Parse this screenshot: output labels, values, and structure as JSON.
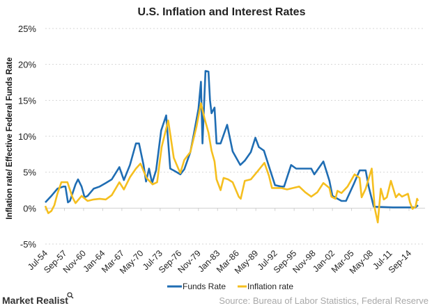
{
  "chart_data": {
    "type": "line",
    "title": "U.S. Inflation and Interest Rates",
    "ylabel": "Inflation rate/ Effective Federal Funds Rate",
    "xlabel": "",
    "ylim": [
      -5,
      25
    ],
    "yticks": [
      "25%",
      "20%",
      "15%",
      "10%",
      "5%",
      "0%",
      "-5%"
    ],
    "ytick_values": [
      25,
      20,
      15,
      10,
      5,
      0,
      -5
    ],
    "xlim": [
      "1954-07",
      "2016-03"
    ],
    "xticks": [
      "Jul-54",
      "Sep-57",
      "Nov-60",
      "Jan-64",
      "Mar-67",
      "May-70",
      "Jul-73",
      "Sep-76",
      "Nov-79",
      "Jan-83",
      "Mar-86",
      "May-89",
      "Jul-92",
      "Sep-95",
      "Nov-98",
      "Jan-02",
      "Mar-05",
      "May-08",
      "Jul-11",
      "Sep-14"
    ],
    "xtick_dates": [
      "1954-07",
      "1957-09",
      "1960-11",
      "1964-01",
      "1967-03",
      "1970-05",
      "1973-07",
      "1976-09",
      "1979-11",
      "1983-01",
      "1986-03",
      "1989-05",
      "1992-07",
      "1995-09",
      "1998-11",
      "2002-01",
      "2005-03",
      "2008-05",
      "2011-07",
      "2014-09"
    ],
    "grid": true,
    "legend_position": "bottom",
    "series": [
      {
        "name": "Funds Rate",
        "color": "#1f6db3",
        "points": [
          [
            "1954-07",
            0.8
          ],
          [
            "1955-07",
            1.7
          ],
          [
            "1956-07",
            2.7
          ],
          [
            "1957-07",
            3.0
          ],
          [
            "1957-11",
            3.0
          ],
          [
            "1958-04",
            0.8
          ],
          [
            "1958-08",
            1.0
          ],
          [
            "1959-07",
            3.3
          ],
          [
            "1959-12",
            4.0
          ],
          [
            "1960-07",
            3.0
          ],
          [
            "1961-01",
            1.5
          ],
          [
            "1961-07",
            1.7
          ],
          [
            "1962-07",
            2.7
          ],
          [
            "1963-07",
            3.0
          ],
          [
            "1964-07",
            3.5
          ],
          [
            "1965-07",
            4.0
          ],
          [
            "1966-10",
            5.7
          ],
          [
            "1967-07",
            3.9
          ],
          [
            "1968-07",
            6.0
          ],
          [
            "1969-07",
            9.0
          ],
          [
            "1970-01",
            9.0
          ],
          [
            "1970-10",
            6.0
          ],
          [
            "1971-03",
            3.7
          ],
          [
            "1971-09",
            5.5
          ],
          [
            "1972-03",
            3.5
          ],
          [
            "1972-11",
            5.3
          ],
          [
            "1973-09",
            10.8
          ],
          [
            "1974-07",
            12.9
          ],
          [
            "1975-03",
            5.5
          ],
          [
            "1975-11",
            5.2
          ],
          [
            "1976-11",
            4.7
          ],
          [
            "1977-07",
            5.4
          ],
          [
            "1978-07",
            7.8
          ],
          [
            "1979-01",
            10.0
          ],
          [
            "1979-11",
            13.8
          ],
          [
            "1980-04",
            17.6
          ],
          [
            "1980-07",
            9.0
          ],
          [
            "1981-01",
            19.1
          ],
          [
            "1981-07",
            19.0
          ],
          [
            "1981-10",
            15.0
          ],
          [
            "1982-01",
            13.2
          ],
          [
            "1982-07",
            14.0
          ],
          [
            "1982-11",
            9.0
          ],
          [
            "1983-07",
            9.0
          ],
          [
            "1984-08",
            11.6
          ],
          [
            "1985-07",
            7.9
          ],
          [
            "1986-10",
            6.0
          ],
          [
            "1987-07",
            6.6
          ],
          [
            "1988-07",
            7.8
          ],
          [
            "1989-04",
            9.8
          ],
          [
            "1989-11",
            8.5
          ],
          [
            "1990-09",
            8.0
          ],
          [
            "1991-07",
            5.8
          ],
          [
            "1992-07",
            3.2
          ],
          [
            "1993-07",
            3.0
          ],
          [
            "1994-01",
            3.0
          ],
          [
            "1995-03",
            6.0
          ],
          [
            "1996-01",
            5.5
          ],
          [
            "1997-07",
            5.5
          ],
          [
            "1998-07",
            5.5
          ],
          [
            "1999-01",
            4.7
          ],
          [
            "2000-07",
            6.5
          ],
          [
            "2001-07",
            3.8
          ],
          [
            "2002-01",
            1.7
          ],
          [
            "2003-07",
            1.0
          ],
          [
            "2004-04",
            1.0
          ],
          [
            "2005-07",
            3.3
          ],
          [
            "2006-07",
            5.25
          ],
          [
            "2007-07",
            5.25
          ],
          [
            "2008-01",
            3.0
          ],
          [
            "2008-11",
            0.2
          ],
          [
            "2012-01",
            0.1
          ],
          [
            "2015-10",
            0.1
          ],
          [
            "2016-03",
            0.4
          ]
        ]
      },
      {
        "name": "Inflation rate",
        "color": "#f5bf1f",
        "points": [
          [
            "1954-07",
            0.3
          ],
          [
            "1955-01",
            -0.7
          ],
          [
            "1955-07",
            -0.4
          ],
          [
            "1956-01",
            0.4
          ],
          [
            "1956-07",
            2.0
          ],
          [
            "1957-03",
            3.6
          ],
          [
            "1958-03",
            3.6
          ],
          [
            "1959-01",
            1.5
          ],
          [
            "1959-07",
            0.7
          ],
          [
            "1960-07",
            1.7
          ],
          [
            "1961-07",
            1.0
          ],
          [
            "1962-07",
            1.2
          ],
          [
            "1963-07",
            1.3
          ],
          [
            "1964-07",
            1.2
          ],
          [
            "1965-07",
            1.8
          ],
          [
            "1966-10",
            3.6
          ],
          [
            "1967-07",
            2.6
          ],
          [
            "1968-07",
            4.3
          ],
          [
            "1969-07",
            5.5
          ],
          [
            "1970-04",
            6.2
          ],
          [
            "1971-04",
            4.2
          ],
          [
            "1972-04",
            3.3
          ],
          [
            "1973-01",
            3.6
          ],
          [
            "1973-10",
            8.5
          ],
          [
            "1974-11",
            12.2
          ],
          [
            "1975-10",
            7.0
          ],
          [
            "1976-07",
            5.5
          ],
          [
            "1976-11",
            4.9
          ],
          [
            "1977-07",
            6.7
          ],
          [
            "1978-07",
            7.8
          ],
          [
            "1979-07",
            11.3
          ],
          [
            "1980-04",
            14.6
          ],
          [
            "1980-11",
            12.5
          ],
          [
            "1981-07",
            10.5
          ],
          [
            "1982-01",
            8.0
          ],
          [
            "1982-07",
            6.5
          ],
          [
            "1982-11",
            4.0
          ],
          [
            "1983-07",
            2.5
          ],
          [
            "1984-01",
            4.2
          ],
          [
            "1984-10",
            4.0
          ],
          [
            "1985-07",
            3.6
          ],
          [
            "1986-07",
            1.6
          ],
          [
            "1986-11",
            1.3
          ],
          [
            "1987-07",
            3.8
          ],
          [
            "1988-07",
            4.0
          ],
          [
            "1989-07",
            5.0
          ],
          [
            "1990-10",
            6.3
          ],
          [
            "1991-07",
            4.5
          ],
          [
            "1992-01",
            2.8
          ],
          [
            "1993-07",
            2.8
          ],
          [
            "1994-07",
            2.6
          ],
          [
            "1995-07",
            2.8
          ],
          [
            "1996-07",
            3.0
          ],
          [
            "1997-07",
            2.2
          ],
          [
            "1998-07",
            1.6
          ],
          [
            "1999-07",
            2.2
          ],
          [
            "2000-07",
            3.5
          ],
          [
            "2001-07",
            2.8
          ],
          [
            "2001-11",
            1.6
          ],
          [
            "2002-07",
            1.3
          ],
          [
            "2002-11",
            2.4
          ],
          [
            "2003-07",
            2.1
          ],
          [
            "2004-07",
            3.0
          ],
          [
            "2005-09",
            4.7
          ],
          [
            "2006-07",
            4.2
          ],
          [
            "2006-11",
            1.5
          ],
          [
            "2007-07",
            2.7
          ],
          [
            "2008-07",
            5.5
          ],
          [
            "2009-01",
            0.0
          ],
          [
            "2009-07",
            -2.0
          ],
          [
            "2010-01",
            2.7
          ],
          [
            "2010-07",
            1.2
          ],
          [
            "2011-01",
            1.5
          ],
          [
            "2011-09",
            3.8
          ],
          [
            "2012-07",
            1.5
          ],
          [
            "2013-01",
            2.0
          ],
          [
            "2013-07",
            1.6
          ],
          [
            "2014-07",
            2.0
          ],
          [
            "2014-11",
            0.8
          ],
          [
            "2015-04",
            -0.1
          ],
          [
            "2015-10",
            0.2
          ],
          [
            "2016-01",
            1.3
          ],
          [
            "2016-03",
            1.0
          ]
        ]
      }
    ]
  },
  "footer": {
    "logo": "Market Realist",
    "source": "Source: Bureau of Labor Statistics, Federal Reserve"
  }
}
